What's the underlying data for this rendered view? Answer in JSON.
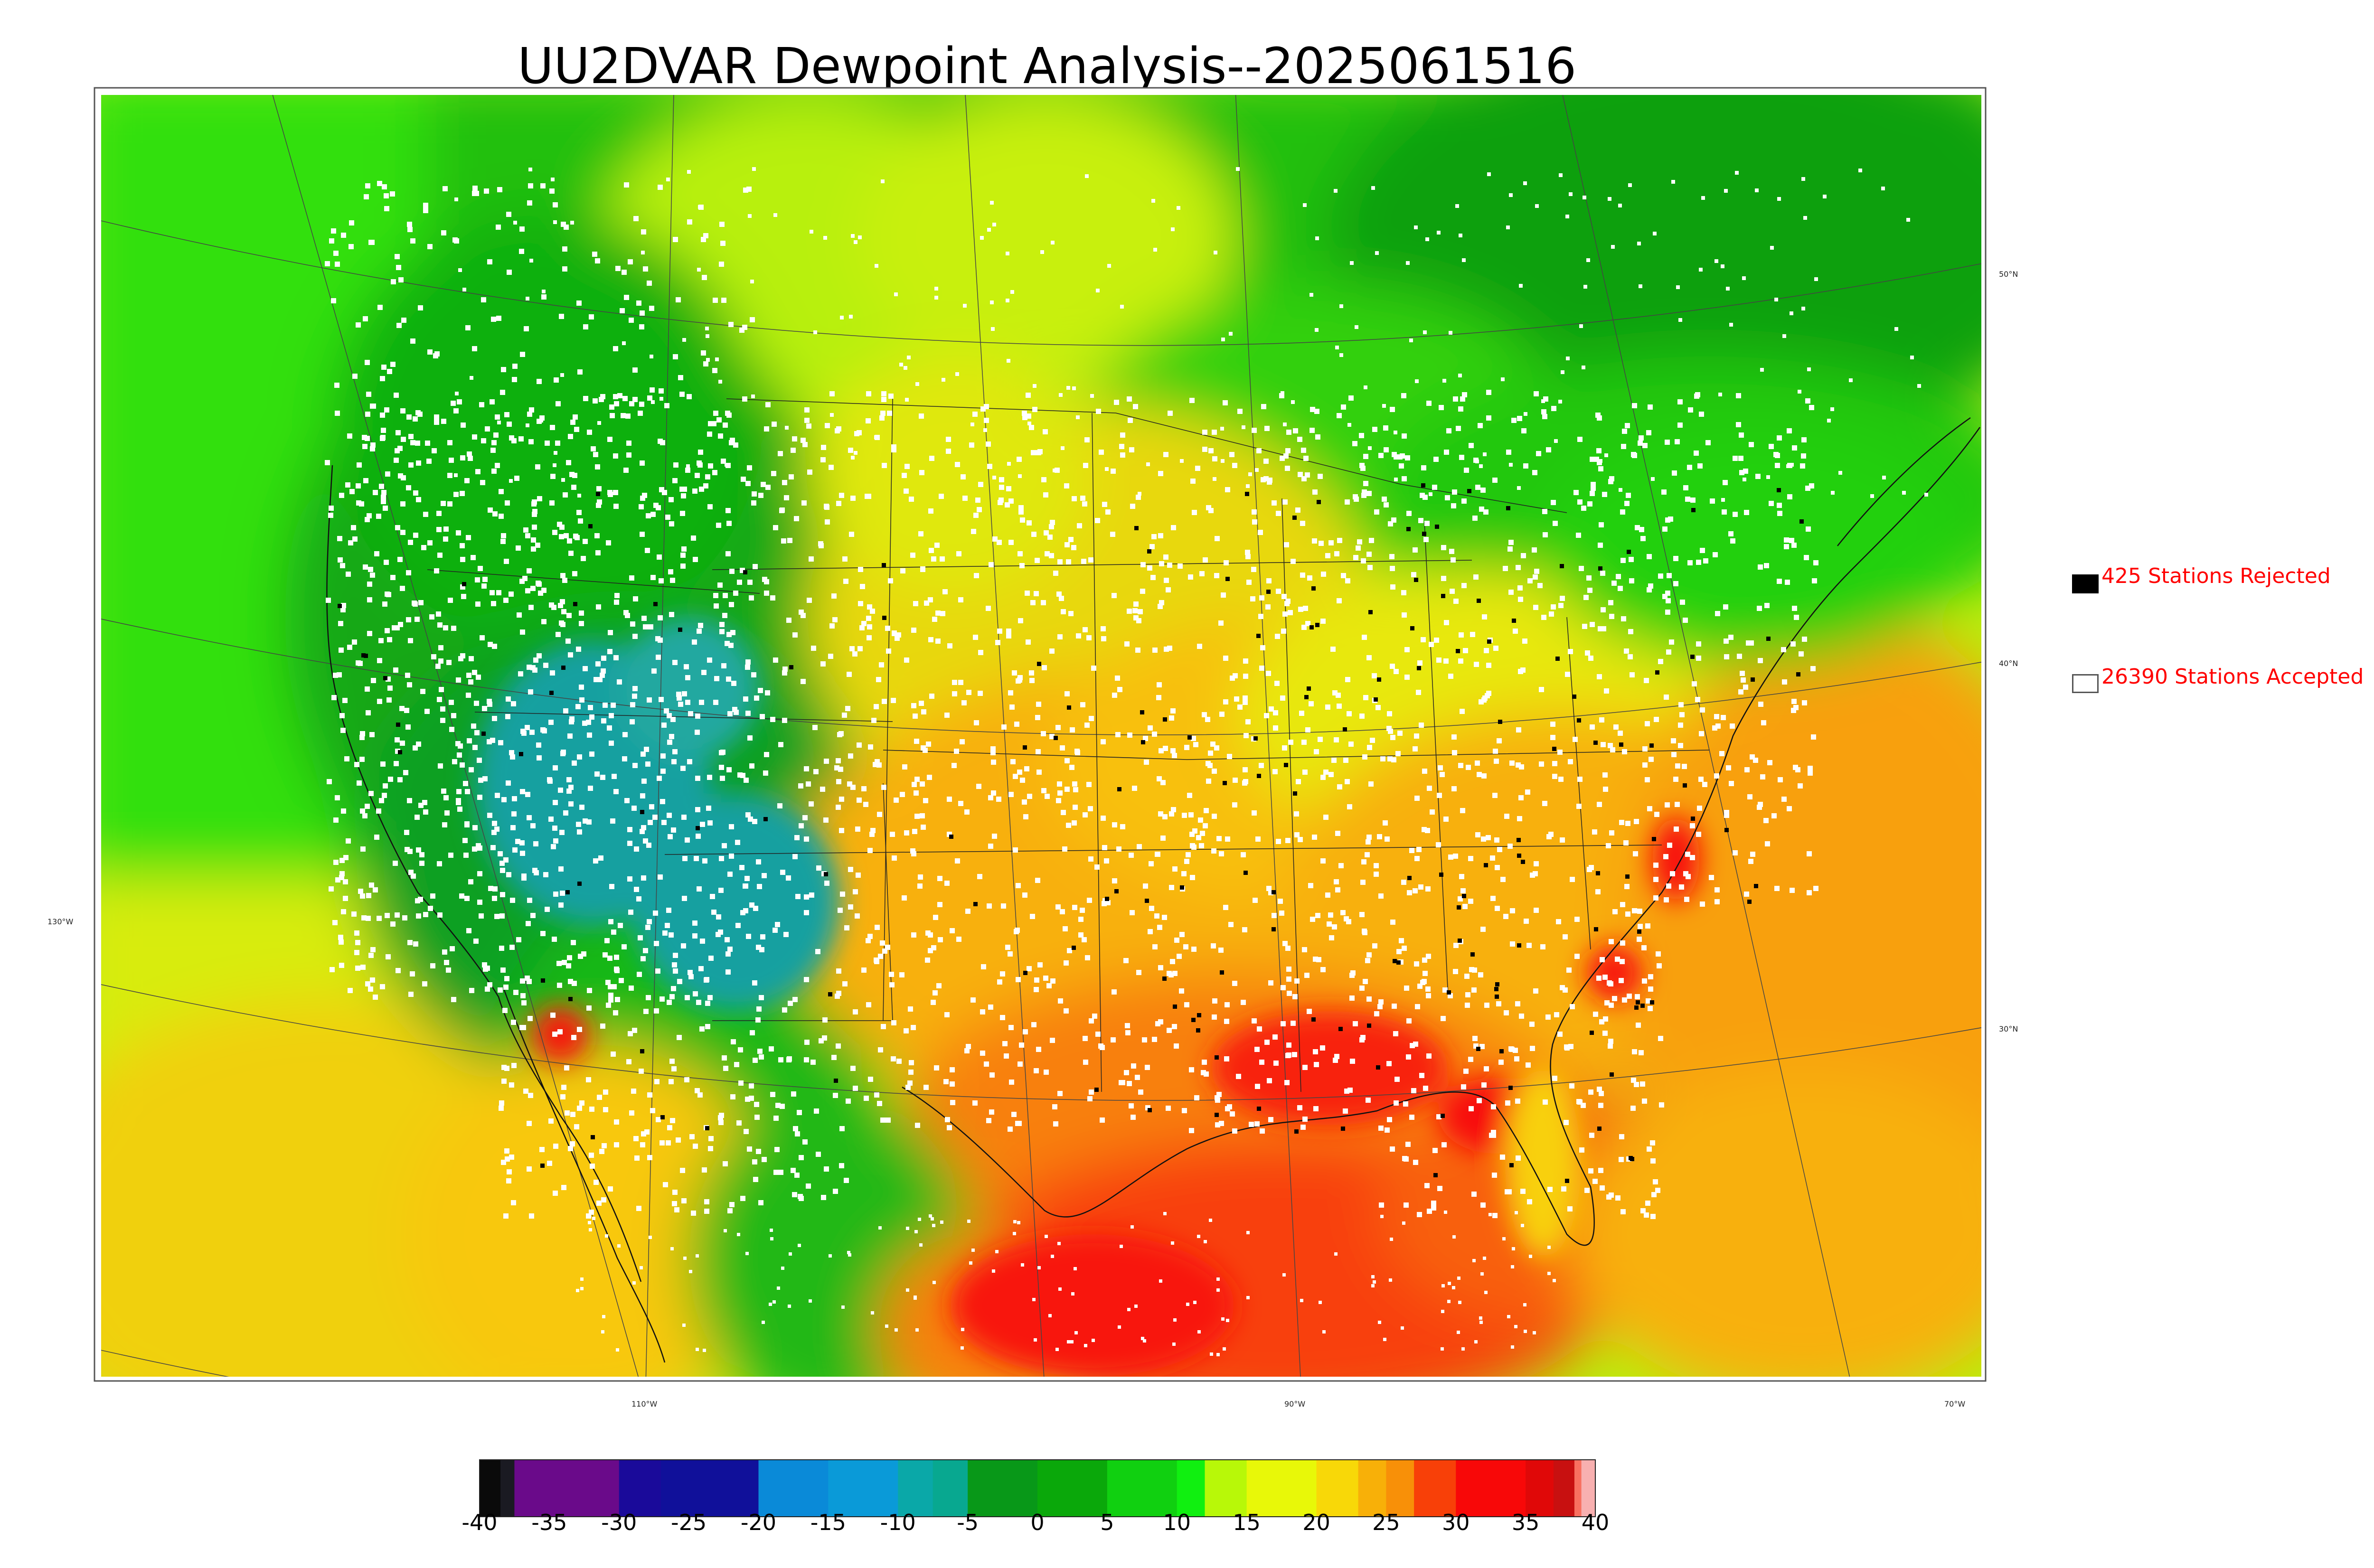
{
  "title": "UU2DVAR Dewpoint Analysis--2025061516",
  "graticule": {
    "lon_labels": [
      "130°W",
      "110°W",
      "90°W",
      "70°W"
    ],
    "lat_labels": [
      "50°N",
      "40°N",
      "30°N"
    ]
  },
  "legend": {
    "rejected": {
      "count_text": "425 Stations Rejected",
      "color": "#000000"
    },
    "accepted": {
      "count_text": "26390 Stations Accepted",
      "color": "#ffffff"
    }
  },
  "colorbar": {
    "ticks": [
      "-40",
      "-35",
      "-30",
      "-25",
      "-20",
      "-15",
      "-10",
      "-5",
      "0",
      "5",
      "10",
      "15",
      "20",
      "25",
      "30",
      "35",
      "40"
    ],
    "range": [
      -40,
      40
    ],
    "colors": [
      [
        -40,
        "#0a0a0a"
      ],
      [
        -38.5,
        "#1a1a22"
      ],
      [
        -37.5,
        "#6a0a8a"
      ],
      [
        -35,
        "#6a0a8a"
      ],
      [
        -30,
        "#1a0a9a"
      ],
      [
        -27,
        "#10109a"
      ],
      [
        -25,
        "#10109a"
      ],
      [
        -22,
        "#10109a"
      ],
      [
        -20,
        "#0a8ad8"
      ],
      [
        -15,
        "#0a9ad8"
      ],
      [
        -10,
        "#0aa8a8"
      ],
      [
        -7.5,
        "#08a890"
      ],
      [
        -5,
        "#089818"
      ],
      [
        0,
        "#0aa80a"
      ],
      [
        5,
        "#10d010"
      ],
      [
        10,
        "#10f010"
      ],
      [
        12,
        "#b8f808"
      ],
      [
        15,
        "#e8f808"
      ],
      [
        20,
        "#f8d808"
      ],
      [
        23,
        "#f8b008"
      ],
      [
        25,
        "#f89008"
      ],
      [
        27,
        "#f84008"
      ],
      [
        30,
        "#f80808"
      ],
      [
        35,
        "#e00808"
      ],
      [
        37,
        "#c81010"
      ],
      [
        38.5,
        "#f87060"
      ],
      [
        39,
        "#f8b0b0"
      ],
      [
        40,
        "#d8d8d8"
      ]
    ]
  }
}
